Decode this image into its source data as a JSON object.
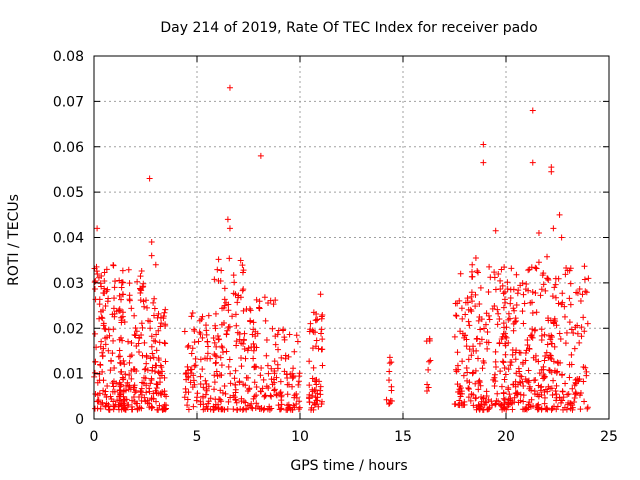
{
  "chart_data": {
    "type": "scatter",
    "title": "Day 214 of 2019, Rate Of TEC Index for receiver pado",
    "xlabel": "GPS time / hours",
    "ylabel": "ROTI / TECUs",
    "xlim": [
      0,
      25
    ],
    "ylim": [
      0,
      0.08
    ],
    "xticks": [
      0,
      5,
      10,
      15,
      20,
      25
    ],
    "xtick_labels": [
      "0",
      "5",
      "10",
      "15",
      "20",
      "25"
    ],
    "yticks": [
      0,
      0.01,
      0.02,
      0.03,
      0.04,
      0.05,
      0.06,
      0.07,
      0.08
    ],
    "ytick_labels": [
      "0",
      "0.01",
      "0.02",
      "0.03",
      "0.04",
      "0.05",
      "0.06",
      "0.07",
      "0.08"
    ],
    "grid": true,
    "marker": "plus",
    "color": "#ff0000",
    "clusters": [
      {
        "x": [
          0.0,
          1.5
        ],
        "y": [
          0.002,
          0.034
        ],
        "n": 150
      },
      {
        "x": [
          1.2,
          2.4
        ],
        "y": [
          0.002,
          0.033
        ],
        "n": 110
      },
      {
        "x": [
          2.4,
          3.5
        ],
        "y": [
          0.002,
          0.027
        ],
        "n": 110
      },
      {
        "x": [
          4.4,
          5.9
        ],
        "y": [
          0.002,
          0.024
        ],
        "n": 90
      },
      {
        "x": [
          5.8,
          7.4
        ],
        "y": [
          0.002,
          0.036
        ],
        "n": 130
      },
      {
        "x": [
          7.4,
          8.8
        ],
        "y": [
          0.002,
          0.027
        ],
        "n": 90
      },
      {
        "x": [
          8.8,
          10.0
        ],
        "y": [
          0.002,
          0.02
        ],
        "n": 70
      },
      {
        "x": [
          10.4,
          11.1
        ],
        "y": [
          0.002,
          0.026
        ],
        "n": 60
      },
      {
        "x": [
          14.2,
          14.5
        ],
        "y": [
          0.003,
          0.014
        ],
        "n": 12
      },
      {
        "x": [
          16.1,
          16.4
        ],
        "y": [
          0.004,
          0.019
        ],
        "n": 10
      },
      {
        "x": [
          17.5,
          18.3
        ],
        "y": [
          0.003,
          0.027
        ],
        "n": 60
      },
      {
        "x": [
          18.3,
          20.0
        ],
        "y": [
          0.002,
          0.036
        ],
        "n": 150
      },
      {
        "x": [
          20.0,
          21.5
        ],
        "y": [
          0.002,
          0.034
        ],
        "n": 140
      },
      {
        "x": [
          21.5,
          24.0
        ],
        "y": [
          0.002,
          0.036
        ],
        "n": 200
      }
    ],
    "outliers": [
      {
        "x": 6.6,
        "y": 0.073
      },
      {
        "x": 8.1,
        "y": 0.058
      },
      {
        "x": 2.7,
        "y": 0.053
      },
      {
        "x": 0.15,
        "y": 0.042
      },
      {
        "x": 6.5,
        "y": 0.044
      },
      {
        "x": 6.6,
        "y": 0.042
      },
      {
        "x": 2.8,
        "y": 0.039
      },
      {
        "x": 2.8,
        "y": 0.036
      },
      {
        "x": 3.0,
        "y": 0.034
      },
      {
        "x": 18.9,
        "y": 0.0605
      },
      {
        "x": 18.9,
        "y": 0.0565
      },
      {
        "x": 21.3,
        "y": 0.068
      },
      {
        "x": 21.3,
        "y": 0.0565
      },
      {
        "x": 22.2,
        "y": 0.0555
      },
      {
        "x": 22.2,
        "y": 0.0545
      },
      {
        "x": 22.6,
        "y": 0.045
      },
      {
        "x": 19.5,
        "y": 0.0415
      },
      {
        "x": 21.6,
        "y": 0.041
      },
      {
        "x": 22.3,
        "y": 0.042
      },
      {
        "x": 22.7,
        "y": 0.04
      },
      {
        "x": 17.8,
        "y": 0.032
      },
      {
        "x": 24.0,
        "y": 0.031
      },
      {
        "x": 1.0,
        "y": 0.029
      },
      {
        "x": 11.0,
        "y": 0.0275
      }
    ]
  }
}
